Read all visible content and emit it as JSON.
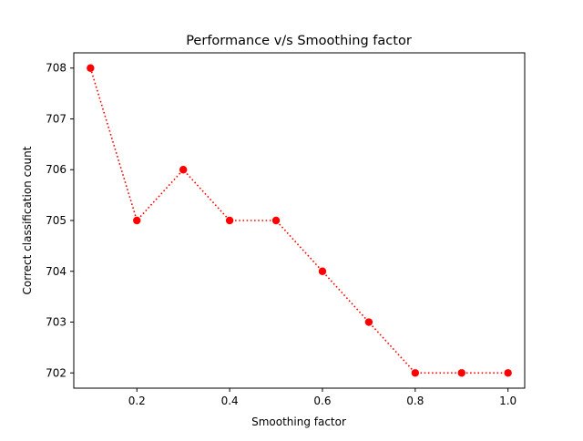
{
  "chart_data": {
    "type": "line",
    "title": "Performance v/s Smoothing factor",
    "xlabel": "Smoothing factor",
    "ylabel": "Correct classification count",
    "xlim": [
      0.064,
      1.036
    ],
    "ylim": [
      701.7,
      708.3
    ],
    "xticks": [
      0.2,
      0.4,
      0.6,
      0.8,
      1.0
    ],
    "xtick_labels": [
      "0.2",
      "0.4",
      "0.6",
      "0.8",
      "1.0"
    ],
    "yticks": [
      702,
      703,
      704,
      705,
      706,
      707,
      708
    ],
    "ytick_labels": [
      "702",
      "703",
      "704",
      "705",
      "706",
      "707",
      "708"
    ],
    "grid": false,
    "series": [
      {
        "x": [
          0.1,
          0.2,
          0.3,
          0.4,
          0.5,
          0.6,
          0.7,
          0.8,
          0.9,
          1.0
        ],
        "y": [
          708,
          705,
          706,
          705,
          705,
          704,
          703,
          702,
          702,
          702
        ],
        "color": "#ff0000",
        "line_style": "dotted",
        "marker": "circle"
      }
    ]
  }
}
